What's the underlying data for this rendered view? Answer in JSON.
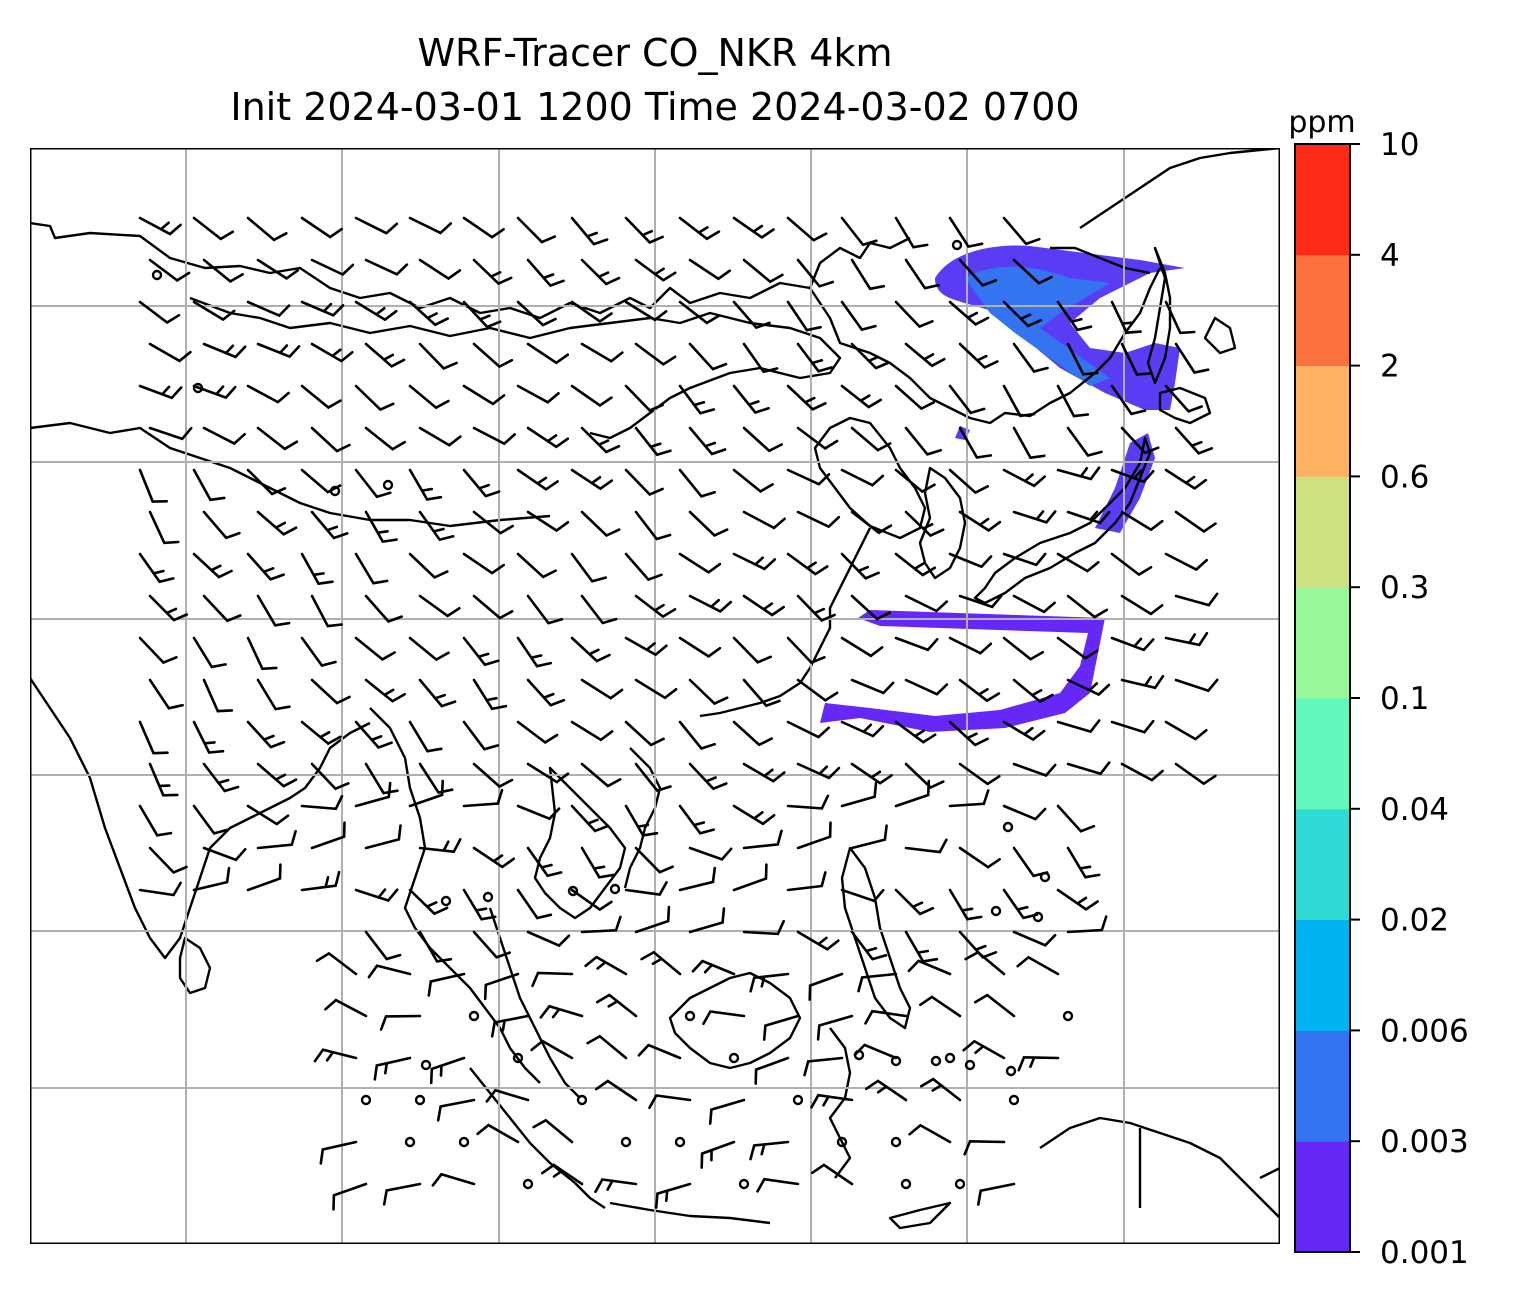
{
  "title": {
    "line1": "WRF-Tracer CO_NKR 4km",
    "line2": "Init 2024-03-01 1200 Time 2024-03-02 0700"
  },
  "colorbar": {
    "unit": "ppm",
    "levels": [
      "0.001",
      "0.003",
      "0.006",
      "0.02",
      "0.04",
      "0.1",
      "0.3",
      "0.6",
      "2",
      "4",
      "10"
    ],
    "colors": [
      "#6528f7",
      "#3574f0",
      "#00b2ef",
      "#2fdcd5",
      "#63f8be",
      "#99f89a",
      "#cde183",
      "#fdb264",
      "#fe723d",
      "#fd2b17"
    ]
  },
  "map": {
    "gridlines": "on",
    "plume_color": "#5a3cf5",
    "barb_color": "#000000",
    "coast_color": "#000000"
  }
}
